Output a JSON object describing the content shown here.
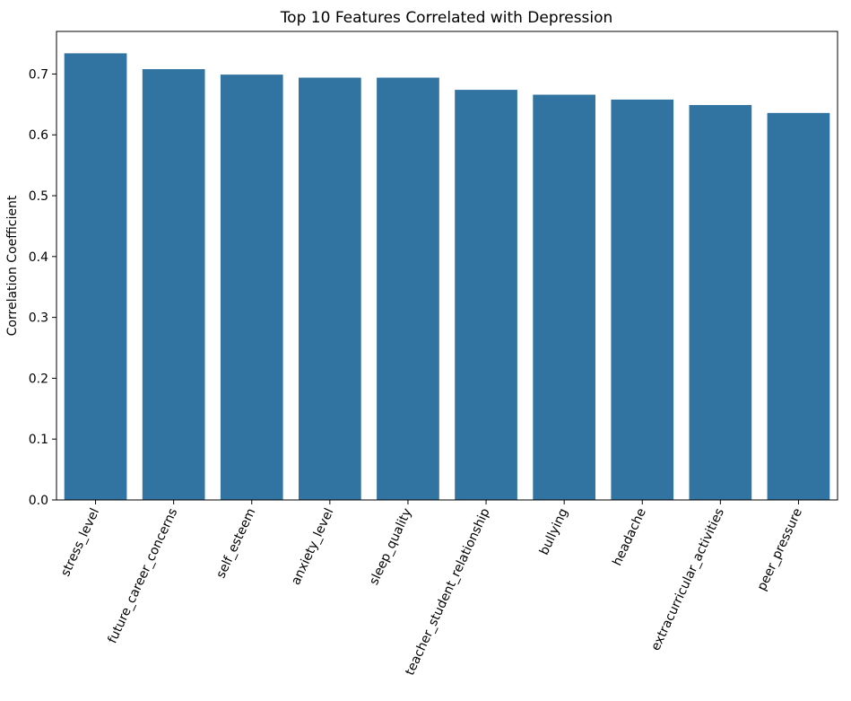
{
  "chart_data": {
    "type": "bar",
    "title": "Top 10 Features Correlated with Depression",
    "xlabel": "",
    "ylabel": "Correlation Coefficient",
    "categories": [
      "stress_level",
      "future_career_concerns",
      "self_esteem",
      "anxiety_level",
      "sleep_quality",
      "teacher_student_relationship",
      "bullying",
      "headache",
      "extracurricular_activities",
      "peer_pressure"
    ],
    "values": [
      0.734,
      0.708,
      0.699,
      0.694,
      0.694,
      0.674,
      0.666,
      0.658,
      0.649,
      0.636
    ],
    "ylim": [
      0,
      0.77
    ],
    "yticks": [
      "0.0",
      "0.1",
      "0.2",
      "0.3",
      "0.4",
      "0.5",
      "0.6",
      "0.7"
    ],
    "grid": false,
    "legend": "none",
    "bar_color": "#3274a1"
  }
}
